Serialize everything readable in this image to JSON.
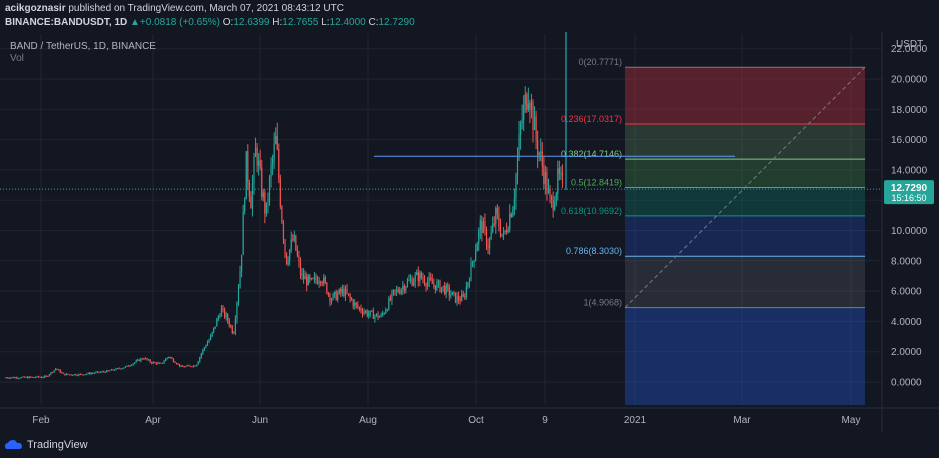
{
  "attribution": {
    "user": "acikgoznasir",
    "text": " published on TradingView.com, March 07, 2021 08:43:12 UTC"
  },
  "ohlc": {
    "symbol": "BINANCE:BANDUSDT, 1D",
    "arrow": "▲",
    "change": "+0.0818 (+0.65%)",
    "o_label": "O:",
    "o": "12.6399",
    "h_label": "H:",
    "h": "12.7655",
    "l_label": "L:",
    "l": "12.4000",
    "c_label": "C:",
    "c": "12.7290",
    "last": "12.7290"
  },
  "branding": {
    "name": "TradingView"
  },
  "colors": {
    "background": "#131722",
    "up": "#26a69a",
    "down": "#ef5350",
    "grid": "#1f2430",
    "text": "#b2b5be"
  },
  "chart_data": {
    "type": "candlestick",
    "title": "BAND / TetherUS, 1D, BINANCE",
    "subtitle": "Vol",
    "currency": "USDT",
    "ylim": [
      -0.8,
      22.5
    ],
    "y_ticks": [
      "0.0000",
      "2.0000",
      "4.0000",
      "6.0000",
      "8.0000",
      "10.0000",
      "12.0000",
      "14.0000",
      "16.0000",
      "18.0000",
      "20.0000",
      "22.0000"
    ],
    "x_ticks": [
      "Feb",
      "Apr",
      "Jun",
      "Aug",
      "Oct",
      "9",
      "2021",
      "Mar",
      "May"
    ],
    "last_price": "12.7290",
    "countdown": "15:16:50",
    "close_path": [
      [
        0,
        0.3
      ],
      [
        8,
        0.3
      ],
      [
        16,
        0.35
      ],
      [
        20,
        0.9
      ],
      [
        23,
        0.5
      ],
      [
        30,
        0.5
      ],
      [
        40,
        0.7
      ],
      [
        48,
        1.0
      ],
      [
        55,
        1.6
      ],
      [
        58,
        1.3
      ],
      [
        62,
        1.2
      ],
      [
        65,
        1.7
      ],
      [
        70,
        1.0
      ],
      [
        76,
        1.1
      ],
      [
        79,
        2.2
      ],
      [
        82,
        3.0
      ],
      [
        86,
        4.8
      ],
      [
        89,
        4.0
      ],
      [
        91,
        3.2
      ],
      [
        94,
        8.0
      ],
      [
        96,
        14.5
      ],
      [
        98,
        12.0
      ],
      [
        100,
        15.5
      ],
      [
        102,
        13.0
      ],
      [
        104,
        11.0
      ],
      [
        106,
        14.0
      ],
      [
        108,
        16.0
      ],
      [
        110,
        11.5
      ],
      [
        112,
        8.0
      ],
      [
        115,
        9.5
      ],
      [
        118,
        7.0
      ],
      [
        122,
        6.5
      ],
      [
        126,
        7.0
      ],
      [
        130,
        5.5
      ],
      [
        135,
        6.0
      ],
      [
        140,
        5.0
      ],
      [
        145,
        4.5
      ],
      [
        150,
        4.3
      ],
      [
        155,
        5.8
      ],
      [
        160,
        6.5
      ],
      [
        165,
        7.0
      ],
      [
        170,
        6.5
      ],
      [
        175,
        6.2
      ],
      [
        180,
        5.5
      ],
      [
        183,
        5.5
      ],
      [
        186,
        7.5
      ],
      [
        190,
        10.5
      ],
      [
        193,
        9.0
      ],
      [
        196,
        11.0
      ],
      [
        199,
        9.5
      ],
      [
        203,
        12.0
      ],
      [
        206,
        17.0
      ],
      [
        209,
        19.5
      ],
      [
        212,
        16.0
      ],
      [
        215,
        14.0
      ],
      [
        218,
        11.5
      ],
      [
        221,
        13.5
      ],
      [
        223,
        12.73
      ]
    ],
    "fib_levels": [
      {
        "ratio": "0",
        "price": "20.7771",
        "value": 20.7771,
        "color": "#787b86",
        "fill": "rgba(242,54,69,0.30)"
      },
      {
        "ratio": "0.236",
        "price": "17.0317",
        "value": 17.0317,
        "color": "#f23645",
        "fill": "rgba(129,199,132,0.20)"
      },
      {
        "ratio": "0.382",
        "price": "14.7146",
        "value": 14.7146,
        "color": "#81c784",
        "fill": "rgba(76,175,80,0.25)"
      },
      {
        "ratio": "0.5",
        "price": "12.8419",
        "value": 12.8419,
        "color": "#4caf50",
        "fill": "rgba(8,153,129,0.25)"
      },
      {
        "ratio": "0.618",
        "price": "10.9692",
        "value": 10.9692,
        "color": "#089981",
        "fill": "rgba(41,98,255,0.22)"
      },
      {
        "ratio": "0.786",
        "price": "8.3030",
        "value": 8.303,
        "color": "#64b5f6",
        "fill": "rgba(120,123,134,0.22)"
      },
      {
        "ratio": "1",
        "price": "4.9068",
        "value": 4.9068,
        "color": "#787b86",
        "fill": "rgba(41,98,255,0.30)"
      }
    ],
    "horizontal_line": 14.9
  }
}
